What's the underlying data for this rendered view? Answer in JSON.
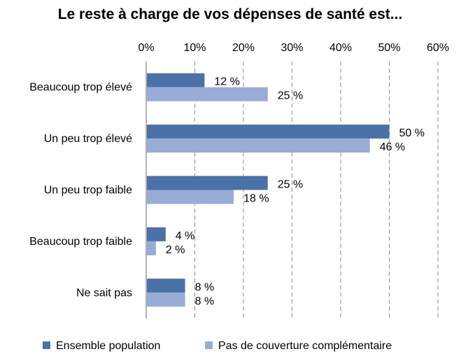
{
  "chart_data": {
    "type": "bar",
    "orientation": "horizontal",
    "title": "Le reste à charge de vos dépenses de santé est...",
    "categories": [
      "Beaucoup trop élevé",
      "Un peu trop élevé",
      "Un peu trop faible",
      "Beaucoup trop faible",
      "Ne sait pas"
    ],
    "series": [
      {
        "name": "Ensemble population",
        "color": "#4a72a8",
        "values": [
          12,
          50,
          25,
          4,
          8
        ],
        "labels": [
          "12 %",
          "50 %",
          "25 %",
          "4 %",
          "8 %"
        ]
      },
      {
        "name": "Pas de couverture complémentaire",
        "color": "#98acd6",
        "values": [
          25,
          46,
          18,
          2,
          8
        ],
        "labels": [
          "25 %",
          "46 %",
          "18 %",
          "2 %",
          "8 %"
        ]
      }
    ],
    "xlim": [
      0,
      60
    ],
    "xticks": [
      "0%",
      "10%",
      "20%",
      "30%",
      "40%",
      "50%",
      "60%"
    ],
    "grid": true,
    "legend_position": "bottom"
  }
}
